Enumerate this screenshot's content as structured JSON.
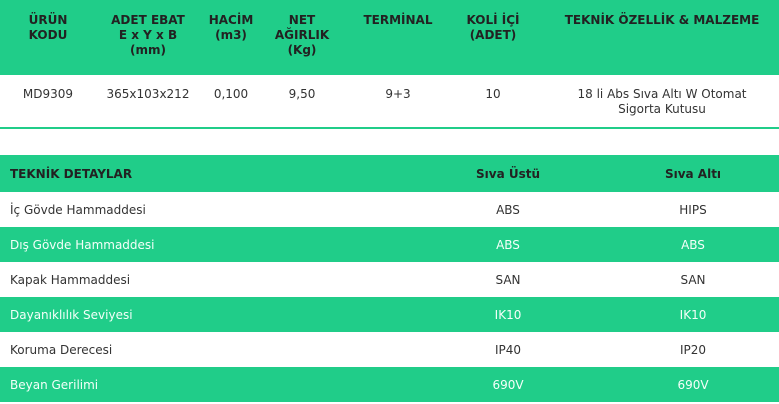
{
  "product_table": {
    "headers": [
      "ÜRÜN\nKODU",
      "ADET EBAT\nE x Y x B\n(mm)",
      "HACİM\n(m3)",
      "NET\nAĞIRLIK\n(Kg)",
      "TERMİNAL",
      "KOLİ İÇİ\n(ADET)",
      "TEKNİK ÖZELLİK & MALZEME"
    ],
    "rows": [
      [
        "MD9309",
        "365x103x212",
        "0,100",
        "9,50",
        "9+3",
        "10",
        "18 li Abs Sıva Altı W Otomat\nSigorta Kutusu"
      ]
    ]
  },
  "detail_table": {
    "headers": [
      "TEKNİK DETAYLAR",
      "Sıva Üstü",
      "Sıva Altı"
    ],
    "rows": [
      [
        "İç Gövde Hammaddesi",
        "ABS",
        "HIPS"
      ],
      [
        "Dış Gövde Hammaddesi",
        "ABS",
        "ABS"
      ],
      [
        "Kapak Hammaddesi",
        "SAN",
        "SAN"
      ],
      [
        "Dayanıklılık Seviyesi",
        "IK10",
        "IK10"
      ],
      [
        "Koruma Derecesi",
        "IP40",
        "IP20"
      ],
      [
        "Beyan Gerilimi",
        "690V",
        "690V"
      ]
    ]
  }
}
